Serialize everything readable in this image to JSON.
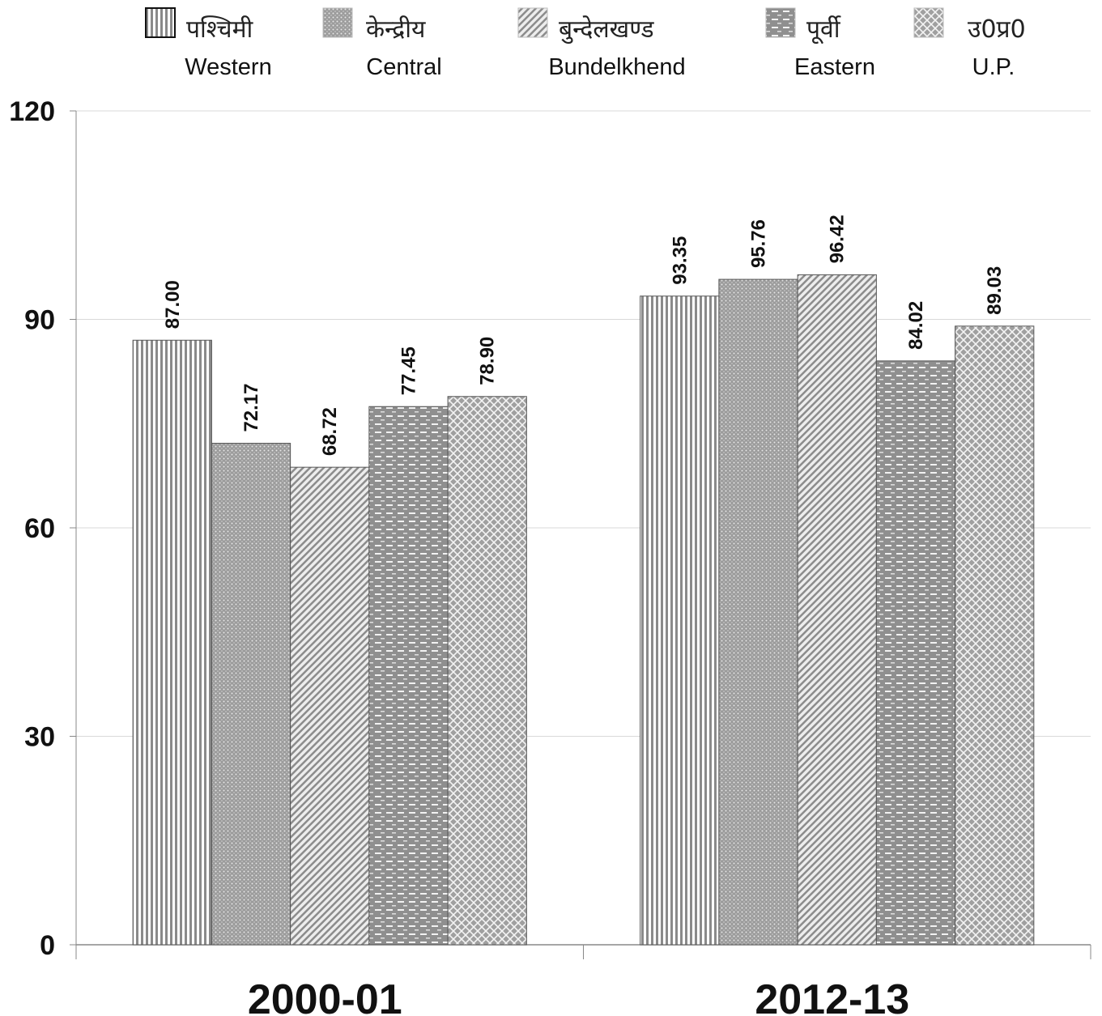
{
  "chart_data": {
    "type": "bar",
    "categories": [
      "2000-01",
      "2012-13"
    ],
    "series": [
      {
        "name": "पश्चिमी",
        "name_en": "Western",
        "pattern": "vertical-stripes",
        "values": [
          87.0,
          93.35
        ],
        "labels": [
          "87.00",
          "93.35"
        ]
      },
      {
        "name": "केन्द्रीय",
        "name_en": "Central",
        "pattern": "fine-dots",
        "values": [
          72.17,
          95.76
        ],
        "labels": [
          "72.17",
          "95.76"
        ]
      },
      {
        "name": "बुन्देलखण्ड",
        "name_en": "Bundelkhend",
        "pattern": "diagonal-stripes",
        "values": [
          68.72,
          96.42
        ],
        "labels": [
          "68.72",
          "96.42"
        ]
      },
      {
        "name": "पूर्वी",
        "name_en": "Eastern",
        "pattern": "dashes",
        "values": [
          77.45,
          84.02
        ],
        "labels": [
          "77.45",
          "84.02"
        ]
      },
      {
        "name": "उ0प्र0",
        "name_en": "U.P.",
        "pattern": "crosshatch",
        "values": [
          78.9,
          89.03
        ],
        "labels": [
          "78.90",
          "89.03"
        ]
      }
    ],
    "ylim": [
      0,
      120
    ],
    "yticks": [
      "0",
      "30",
      "60",
      "90",
      "120"
    ],
    "grid": true,
    "legend_position": "top",
    "colors": {
      "bar_fill": "#9a9a9a",
      "pattern": "#ffffff",
      "bar_border": "#555555",
      "grid": "#d9d9d9",
      "axis": "#888888"
    }
  }
}
